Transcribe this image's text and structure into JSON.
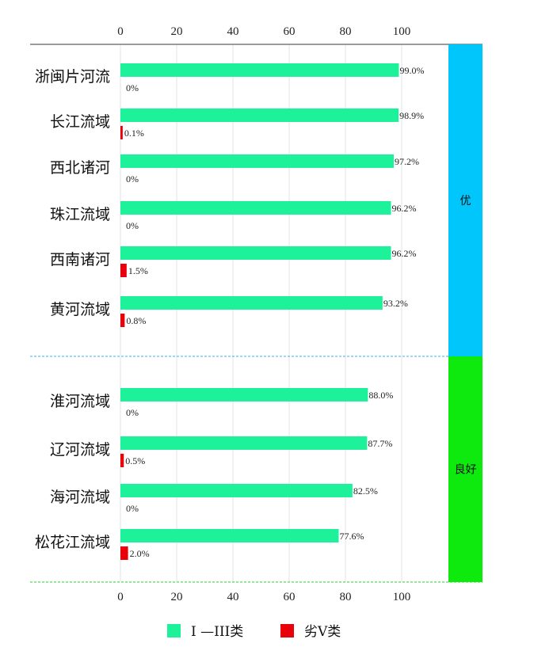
{
  "chart_data": {
    "type": "bar",
    "orientation": "horizontal",
    "xlim": [
      0,
      100
    ],
    "ticks": [
      "0",
      "20",
      "40",
      "60",
      "80",
      "100"
    ],
    "categories": [
      "浙闽片河流",
      "长江流域",
      "西北诸河",
      "珠江流域",
      "西南诸河",
      "黄河流域",
      "淮河流域",
      "辽河流域",
      "海河流域",
      "松花江流域"
    ],
    "series": [
      {
        "name": "I —III类",
        "color": "#1df29a",
        "values": [
          99.0,
          98.9,
          97.2,
          96.2,
          96.2,
          93.2,
          88.0,
          87.7,
          82.5,
          77.6
        ],
        "labels": [
          "99.0%",
          "98.9%",
          "97.2%",
          "96.2%",
          "96.2%",
          "93.2%",
          "88.0%",
          "87.7%",
          "82.5%",
          "77.6%"
        ]
      },
      {
        "name": "劣V类",
        "color": "#e8000b",
        "values": [
          0,
          0.1,
          0,
          0,
          1.5,
          0.8,
          0,
          0.5,
          0,
          2.0
        ],
        "labels": [
          "0%",
          "0.1%",
          "0%",
          "0%",
          "1.5%",
          "0.8%",
          "0%",
          "0.5%",
          "0%",
          "2.0%"
        ]
      }
    ],
    "groups": [
      {
        "label": "优",
        "color": "#00c6fb",
        "start": 0,
        "end": 5
      },
      {
        "label": "良好",
        "color": "#0ee90e",
        "start": 6,
        "end": 9
      }
    ],
    "legend_position": "bottom",
    "grid": "vertical"
  }
}
